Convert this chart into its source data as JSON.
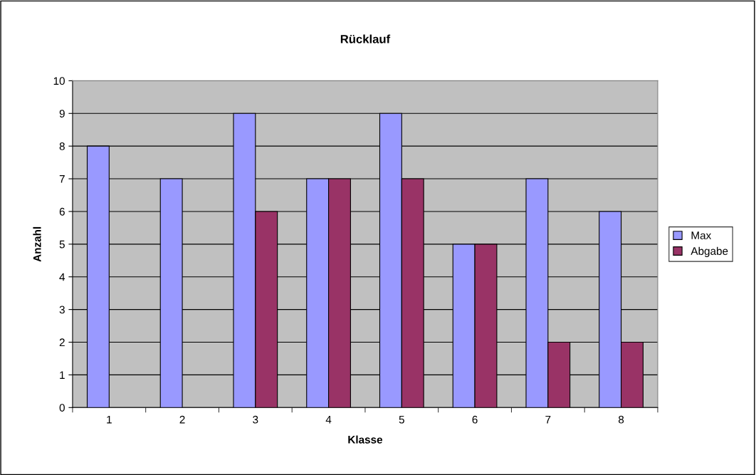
{
  "chart_data": {
    "type": "bar",
    "title": "Rücklauf",
    "xlabel": "Klasse",
    "ylabel": "Anzahl",
    "categories": [
      "1",
      "2",
      "3",
      "4",
      "5",
      "6",
      "7",
      "8"
    ],
    "series": [
      {
        "name": "Max",
        "color": "#9999ff",
        "values": [
          8,
          7,
          9,
          7,
          9,
          5,
          7,
          6
        ]
      },
      {
        "name": "Abgabe",
        "color": "#993366",
        "values": [
          null,
          null,
          6,
          7,
          7,
          5,
          2,
          2
        ]
      }
    ],
    "ylim": [
      0,
      10
    ],
    "yticks": [
      0,
      1,
      2,
      3,
      4,
      5,
      6,
      7,
      8,
      9,
      10
    ],
    "grid": "y",
    "legend": "right"
  }
}
